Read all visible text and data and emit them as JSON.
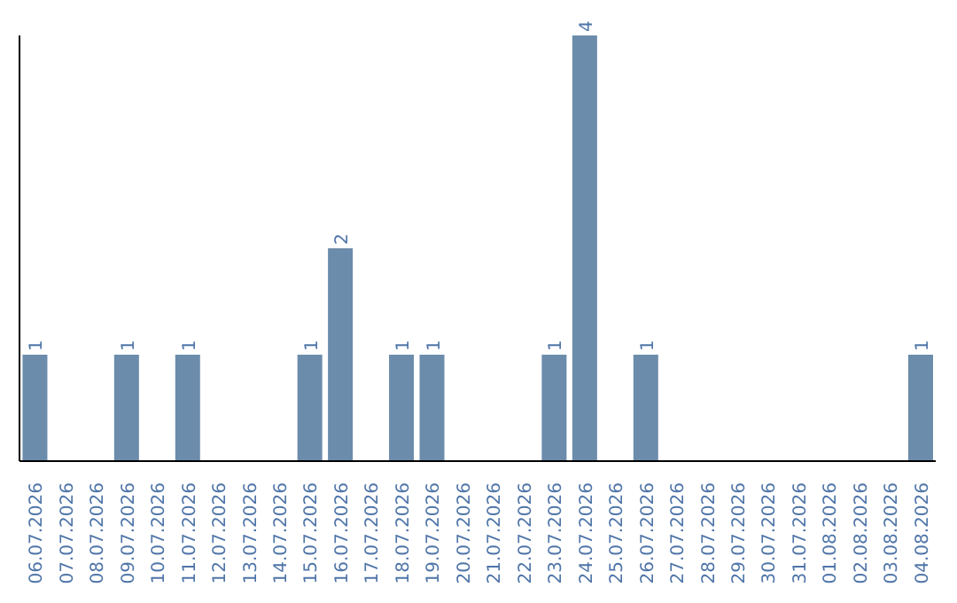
{
  "chart_data": {
    "type": "bar",
    "categories": [
      "06.07.2026",
      "07.07.2026",
      "08.07.2026",
      "09.07.2026",
      "10.07.2026",
      "11.07.2026",
      "12.07.2026",
      "13.07.2026",
      "14.07.2026",
      "15.07.2026",
      "16.07.2026",
      "17.07.2026",
      "18.07.2026",
      "19.07.2026",
      "20.07.2026",
      "21.07.2026",
      "22.07.2026",
      "23.07.2026",
      "24.07.2026",
      "25.07.2026",
      "26.07.2026",
      "27.07.2026",
      "28.07.2026",
      "29.07.2026",
      "30.07.2026",
      "31.07.2026",
      "01.08.2026",
      "02.08.2026",
      "03.08.2026",
      "04.08.2026"
    ],
    "values": [
      1,
      0,
      0,
      1,
      0,
      1,
      0,
      0,
      0,
      1,
      2,
      0,
      1,
      1,
      0,
      0,
      0,
      1,
      4,
      0,
      1,
      0,
      0,
      0,
      0,
      0,
      0,
      0,
      0,
      1
    ],
    "value_labels": [
      "1",
      null,
      null,
      "1",
      null,
      "1",
      null,
      null,
      null,
      "1",
      "2",
      null,
      "1",
      "1",
      null,
      null,
      null,
      "1",
      "4",
      null,
      "1",
      null,
      null,
      null,
      null,
      null,
      null,
      null,
      null,
      "1"
    ],
    "color": "#6b8cab"
  }
}
